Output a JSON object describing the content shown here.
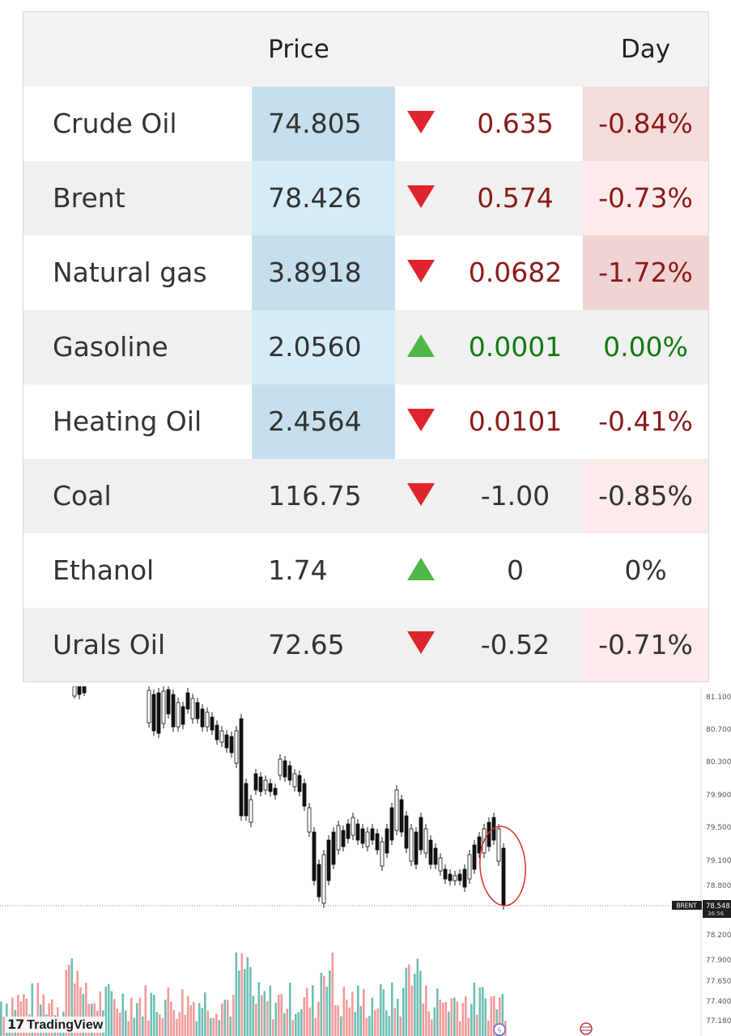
{
  "table": {
    "headers": {
      "price": "Price",
      "day": "Day"
    },
    "rows": [
      {
        "name": "Crude Oil",
        "price": "74.805",
        "direction": "down",
        "change": "0.635",
        "pct": "-0.84%"
      },
      {
        "name": "Brent",
        "price": "78.426",
        "direction": "down",
        "change": "0.574",
        "pct": "-0.73%"
      },
      {
        "name": "Natural gas",
        "price": "3.8918",
        "direction": "down",
        "change": "0.0682",
        "pct": "-1.72%"
      },
      {
        "name": "Gasoline",
        "price": "2.0560",
        "direction": "up",
        "change": "0.0001",
        "pct": "0.00%"
      },
      {
        "name": "Heating Oil",
        "price": "2.4564",
        "direction": "down",
        "change": "0.0101",
        "pct": "-0.41%"
      },
      {
        "name": "Coal",
        "price": "116.75",
        "direction": "down",
        "change": "-1.00",
        "pct": "-0.85%"
      },
      {
        "name": "Ethanol",
        "price": "1.74",
        "direction": "up",
        "change": "0",
        "pct": "0%"
      },
      {
        "name": "Urals Oil",
        "price": "72.65",
        "direction": "down",
        "change": "-0.52",
        "pct": "-0.71%"
      }
    ]
  },
  "chart": {
    "axis_ticks": [
      "81.100",
      "80.700",
      "80.300",
      "79.900",
      "79.500",
      "79.100",
      "78.800",
      "78.200",
      "77.900",
      "77.650",
      "77.400",
      "77.180"
    ],
    "symbol_label": "BRENT",
    "last_price": "78.548",
    "countdown": "36:56",
    "brand": "TradingView",
    "colors": {
      "up_volume": "#6dbfb3",
      "down_volume": "#f19a9a",
      "annotation": "#d8322c"
    }
  }
}
